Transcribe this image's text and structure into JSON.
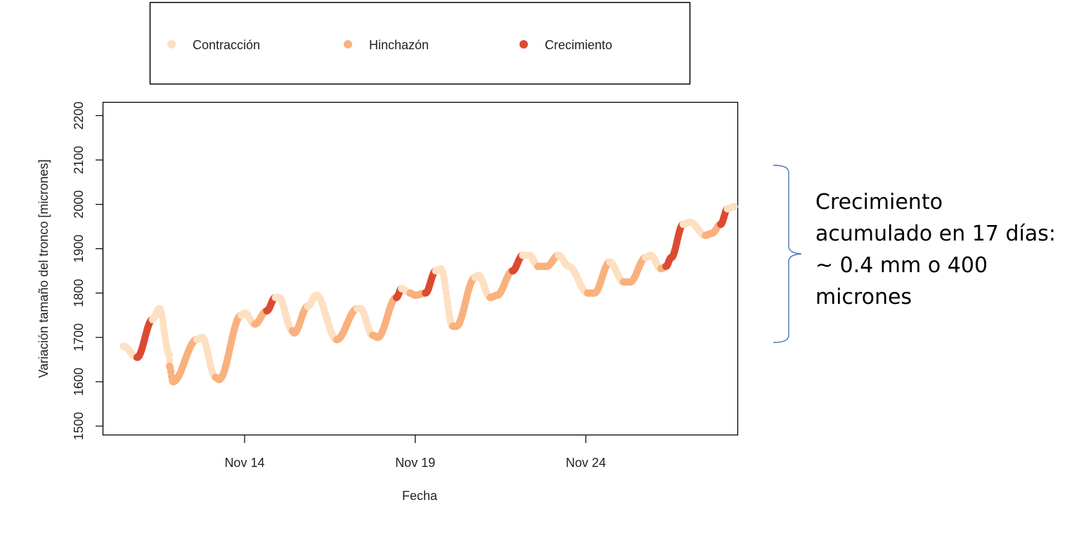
{
  "chart_data": {
    "type": "scatter",
    "xlabel": "Fecha",
    "ylabel": "Variación tamaño del tronco [micrones]",
    "x_ticks": [
      "Nov 14",
      "Nov 19",
      "Nov 24"
    ],
    "y_ticks": [
      "1500",
      "1600",
      "1700",
      "1800",
      "1900",
      "2000",
      "2100",
      "2200"
    ],
    "ylim": [
      1480,
      2230
    ],
    "x_unit": "days since Nov 10",
    "xlim": [
      9.85,
      28.45
    ],
    "grid": false,
    "legend_position": "top",
    "series": [
      {
        "name": "Contracción",
        "color": "#FDE0C2"
      },
      {
        "name": "Hinchazón",
        "color": "#F9B17E"
      },
      {
        "name": "Crecimiento",
        "color": "#DC4A32"
      }
    ],
    "trace": [
      [
        10.45,
        1680,
        0
      ],
      [
        10.85,
        1655,
        0
      ],
      [
        11.3,
        1740,
        2
      ],
      [
        11.5,
        1765,
        0
      ],
      [
        11.8,
        1660,
        0
      ],
      [
        11.8,
        1635,
        0
      ],
      [
        11.9,
        1600,
        1
      ],
      [
        12.6,
        1695,
        1
      ],
      [
        12.75,
        1700,
        0
      ],
      [
        13.15,
        1610,
        0
      ],
      [
        13.25,
        1605,
        1
      ],
      [
        13.9,
        1750,
        1
      ],
      [
        14.0,
        1755,
        0
      ],
      [
        14.3,
        1730,
        0
      ],
      [
        14.65,
        1760,
        1
      ],
      [
        14.9,
        1790,
        2
      ],
      [
        15.0,
        1790,
        0
      ],
      [
        15.4,
        1715,
        0
      ],
      [
        15.45,
        1710,
        1
      ],
      [
        15.85,
        1770,
        1
      ],
      [
        16.1,
        1795,
        0
      ],
      [
        16.7,
        1695,
        0
      ],
      [
        17.3,
        1765,
        1
      ],
      [
        17.4,
        1765,
        0
      ],
      [
        17.75,
        1705,
        0
      ],
      [
        17.9,
        1700,
        1
      ],
      [
        18.45,
        1790,
        1
      ],
      [
        18.6,
        1810,
        2
      ],
      [
        18.85,
        1800,
        0
      ],
      [
        19.0,
        1795,
        1
      ],
      [
        19.3,
        1800,
        1
      ],
      [
        19.6,
        1850,
        2
      ],
      [
        19.75,
        1855,
        0
      ],
      [
        20.1,
        1725,
        0
      ],
      [
        20.2,
        1725,
        1
      ],
      [
        20.75,
        1835,
        1
      ],
      [
        20.85,
        1840,
        0
      ],
      [
        21.2,
        1790,
        0
      ],
      [
        21.4,
        1795,
        1
      ],
      [
        21.85,
        1850,
        1
      ],
      [
        22.15,
        1885,
        2
      ],
      [
        22.35,
        1885,
        0
      ],
      [
        22.6,
        1860,
        0
      ],
      [
        22.85,
        1860,
        1
      ],
      [
        23.2,
        1885,
        1
      ],
      [
        23.5,
        1860,
        0
      ],
      [
        24.05,
        1800,
        0
      ],
      [
        24.25,
        1800,
        1
      ],
      [
        24.7,
        1870,
        1
      ],
      [
        25.1,
        1825,
        0
      ],
      [
        25.3,
        1825,
        1
      ],
      [
        25.75,
        1880,
        1
      ],
      [
        25.9,
        1885,
        0
      ],
      [
        26.2,
        1855,
        0
      ],
      [
        26.35,
        1860,
        1
      ],
      [
        26.5,
        1880,
        2
      ],
      [
        26.85,
        1955,
        2
      ],
      [
        27.05,
        1960,
        0
      ],
      [
        27.5,
        1930,
        0
      ],
      [
        27.7,
        1935,
        1
      ],
      [
        27.95,
        1955,
        1
      ],
      [
        28.15,
        1990,
        2
      ],
      [
        28.35,
        1995,
        0
      ]
    ]
  },
  "legend": {
    "items": [
      {
        "label": "Contracción",
        "color": "#FDE0C2"
      },
      {
        "label": "Hinchazón",
        "color": "#F9B17E"
      },
      {
        "label": "Crecimiento",
        "color": "#DC4A32"
      }
    ]
  },
  "annotation": {
    "lines": [
      "Crecimiento",
      "acumulado en 17 días:",
      "~ 0.4 mm o 400",
      "micrones"
    ],
    "bracket_color": "#4A75B5"
  }
}
